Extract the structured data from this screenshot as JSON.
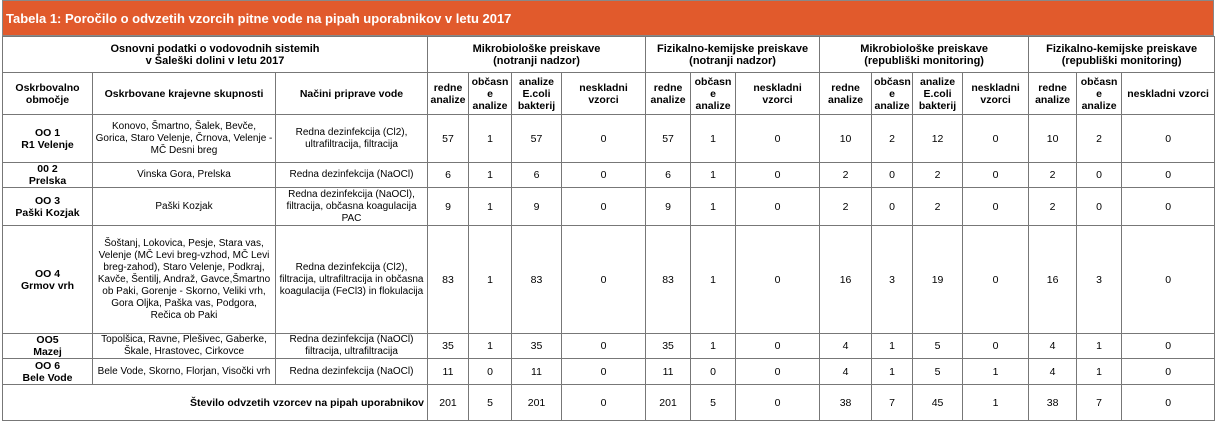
{
  "title": "Tabela 1: Poročilo o odvzetih vzorcih pitne vode na pipah uporabnikov v letu 2017",
  "header": {
    "basic_line1": "Osnovni podatki o vodovodnih sistemih",
    "basic_line2": "v Šaleški dolini v letu 2017",
    "groups": [
      {
        "line1": "Mikrobiološke preiskave",
        "line2": "(notranji nadzor)"
      },
      {
        "line1": "Fizikalno-kemijske preiskave",
        "line2": "(notranji nadzor)"
      },
      {
        "line1": "Mikrobiološke preiskave",
        "line2": "(republiški monitoring)"
      },
      {
        "line1": "Fizikalno-kemijske preiskave",
        "line2": "(republiški monitoring)"
      }
    ],
    "col_area": "Oskrbovalno območje",
    "col_communities": "Oskrbovane krajevne skupnosti",
    "col_methods": "Načini priprave vode",
    "col_redne": "redne analize",
    "col_obcasne": "občasn e analize",
    "col_ecoli": "analize E.coli bakterij",
    "col_neskladni": "neskladni vzorci"
  },
  "rows": [
    {
      "area_code": "OO 1",
      "area_name": "R1 Velenje",
      "communities": "Konovo, Šmartno, Šalek, Bevče, Gorica, Staro Velenje, Črnova, Velenje - MČ Desni breg",
      "methods": "Redna dezinfekcija (Cl2), ultrafiltracija, filtracija",
      "values": [
        "57",
        "1",
        "57",
        "0",
        "57",
        "1",
        "0",
        "10",
        "2",
        "12",
        "0",
        "10",
        "2",
        "0"
      ]
    },
    {
      "area_code": "00 2",
      "area_name": "Prelska",
      "communities": "Vinska Gora, Prelska",
      "methods": "Redna dezinfekcija (NaOCl)",
      "values": [
        "6",
        "1",
        "6",
        "0",
        "6",
        "1",
        "0",
        "2",
        "0",
        "2",
        "0",
        "2",
        "0",
        "0"
      ]
    },
    {
      "area_code": "OO 3",
      "area_name": "Paški Kozjak",
      "communities": "Paški Kozjak",
      "methods": "Redna dezinfekcija (NaOCl), filtracija, občasna koagulacija PAC",
      "values": [
        "9",
        "1",
        "9",
        "0",
        "9",
        "1",
        "0",
        "2",
        "0",
        "2",
        "0",
        "2",
        "0",
        "0"
      ]
    },
    {
      "area_code": "OO 4",
      "area_name": "Grmov vrh",
      "communities": "Šoštanj, Lokovica, Pesje, Stara vas, Velenje (MČ Levi breg-vzhod, MČ Levi breg-zahod), Staro Velenje, Podkraj, Kavče, Šentilj, Andraž, Gavce,Šmartno ob Paki, Gorenje - Skorno, Veliki vrh, Gora Oljka, Paška vas, Podgora, Rečica ob Paki",
      "methods": "Redna dezinfekcija (Cl2), filtracija, ultrafiltracija in občasna koagulacija (FeCl3) in flokulacija",
      "values": [
        "83",
        "1",
        "83",
        "0",
        "83",
        "1",
        "0",
        "16",
        "3",
        "19",
        "0",
        "16",
        "3",
        "0"
      ]
    },
    {
      "area_code": "OO5",
      "area_name": "Mazej",
      "communities": "Topolšica, Ravne, Plešivec, Gaberke, Škale, Hrastovec, Cirkovce",
      "methods": "Redna dezinfekcija (NaOCl) filtracija, ultrafiltracija",
      "values": [
        "35",
        "1",
        "35",
        "0",
        "35",
        "1",
        "0",
        "4",
        "1",
        "5",
        "0",
        "4",
        "1",
        "0"
      ]
    },
    {
      "area_code": "OO 6",
      "area_name": "Bele Vode",
      "communities": "Bele Vode, Skorno, Florjan, Visočki vrh",
      "methods": "Redna dezinfekcija (NaOCl)",
      "values": [
        "11",
        "0",
        "11",
        "0",
        "11",
        "0",
        "0",
        "4",
        "1",
        "5",
        "1",
        "4",
        "1",
        "0"
      ]
    }
  ],
  "total": {
    "label": "Število odvzetih vzorcev na pipah uporabnikov",
    "values": [
      "201",
      "5",
      "201",
      "0",
      "201",
      "5",
      "0",
      "38",
      "7",
      "45",
      "1",
      "38",
      "7",
      "0"
    ]
  }
}
